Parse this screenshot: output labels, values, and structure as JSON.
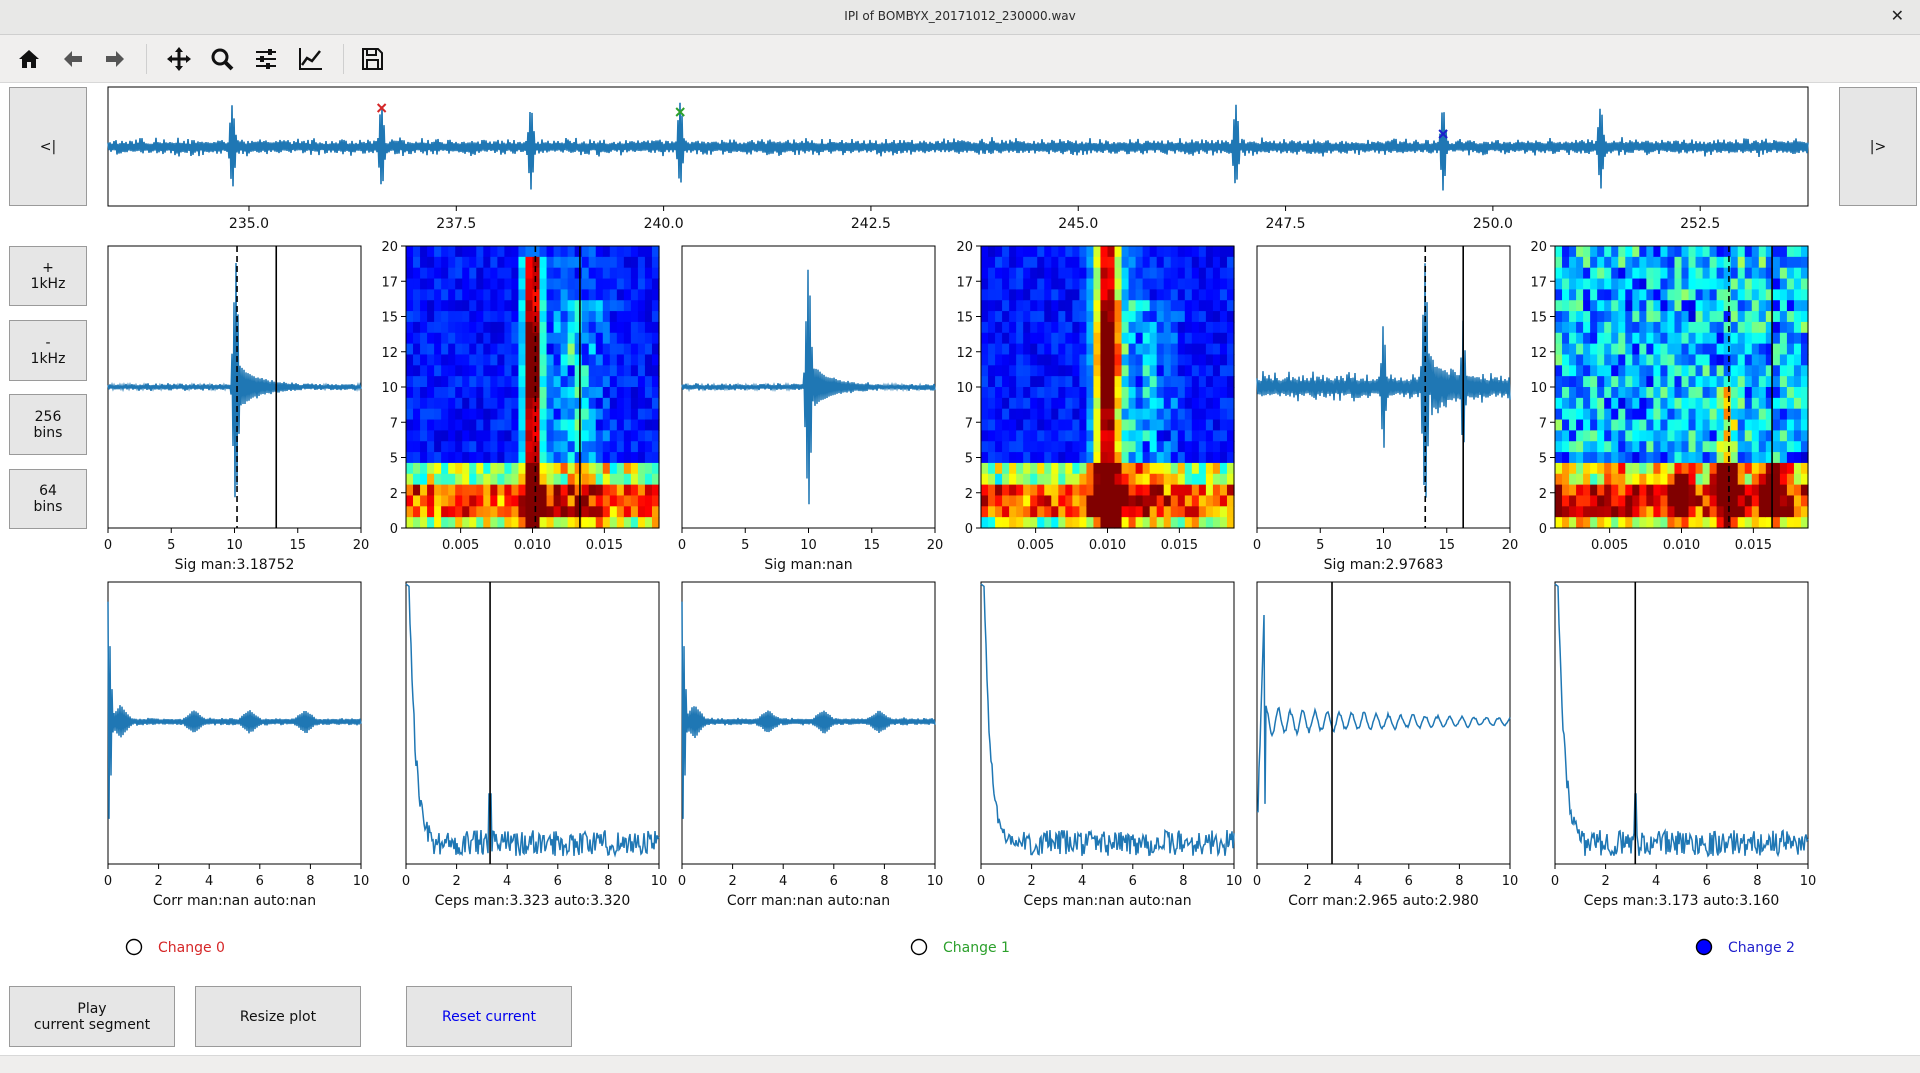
{
  "window": {
    "title": "IPI of BOMBYX_20171012_230000.wav"
  },
  "toolbar": {
    "icons": [
      "home-icon",
      "back-arrow-icon",
      "forward-arrow-icon",
      "pan-icon",
      "zoom-icon",
      "subplots-config-icon",
      "axes-edit-icon",
      "save-icon"
    ]
  },
  "nav": {
    "prev_label": "<|",
    "next_label": "|>"
  },
  "side_buttons": {
    "plus_khz": "+\n1kHz",
    "minus_khz": "-\n1kHz",
    "bins256": "256\nbins",
    "bins64": "64\nbins"
  },
  "bottom_buttons": {
    "play": "Play\ncurrent segment",
    "resize": "Resize plot",
    "reset": "Reset current"
  },
  "overview": {
    "ticks": [
      "235.0",
      "237.5",
      "240.0",
      "242.5",
      "245.0",
      "247.5",
      "250.0",
      "252.5"
    ],
    "tick_values": [
      235.0,
      237.5,
      240.0,
      242.5,
      245.0,
      247.5,
      250.0,
      252.5
    ],
    "xlim": [
      233.3,
      253.8
    ],
    "clicks": [
      236.6,
      240.2,
      246.9,
      249.4,
      251.3,
      238.4,
      234.8
    ],
    "markers": [
      {
        "x": 236.6,
        "color": "#d62728"
      },
      {
        "x": 240.2,
        "color": "#2ca02c"
      },
      {
        "x": 249.4,
        "color": "#1f1fcc"
      }
    ]
  },
  "plots": {
    "sig": [
      {
        "xlabel": "Sig man:3.18752",
        "ticks": [
          "0",
          "5",
          "10",
          "15",
          "20"
        ],
        "peak": 10.1,
        "dashed": 10.2,
        "solid": 13.3,
        "shape": "click"
      },
      {
        "xlabel": "Sig man:nan",
        "ticks": [
          "0",
          "5",
          "10",
          "15",
          "20"
        ],
        "peak": 10.0,
        "dashed": null,
        "solid": null,
        "shape": "click"
      },
      {
        "xlabel": "Sig man:2.97683",
        "ticks": [
          "0",
          "5",
          "10",
          "15",
          "20"
        ],
        "peak": 13.3,
        "dashed": 13.3,
        "solid": 16.3,
        "shape": "noisy"
      }
    ],
    "spec": [
      {
        "yticks": [
          "0",
          "2",
          "5",
          "7",
          "10",
          "12",
          "15",
          "17",
          "20"
        ],
        "xticks": [
          "0.005",
          "0.010",
          "0.015"
        ],
        "dashed": 0.0102,
        "solid": 0.0133,
        "mode": "a"
      },
      {
        "yticks": [
          "0",
          "2",
          "5",
          "7",
          "10",
          "12",
          "15",
          "17",
          "20"
        ],
        "xticks": [
          "0.005",
          "0.010",
          "0.015"
        ],
        "dashed": null,
        "solid": null,
        "mode": "b"
      },
      {
        "yticks": [
          "0",
          "2",
          "5",
          "7",
          "10",
          "12",
          "15",
          "17",
          "20"
        ],
        "xticks": [
          "0.005",
          "0.010",
          "0.015"
        ],
        "dashed": 0.0133,
        "solid": 0.0163,
        "mode": "c"
      }
    ],
    "corr": [
      {
        "xlabel": "Corr man:nan auto:nan",
        "ticks": [
          "0",
          "2",
          "4",
          "6",
          "8",
          "10"
        ],
        "solid": null,
        "shape": "decay"
      },
      {
        "xlabel": "Corr man:nan auto:nan",
        "ticks": [
          "0",
          "2",
          "4",
          "6",
          "8",
          "10"
        ],
        "solid": null,
        "shape": "decay"
      },
      {
        "xlabel": "Corr man:2.965 auto:2.980",
        "ticks": [
          "0",
          "2",
          "4",
          "6",
          "8",
          "10"
        ],
        "solid": 2.965,
        "shape": "osc"
      }
    ],
    "ceps": [
      {
        "xlabel": "Ceps man:3.323 auto:3.320",
        "ticks": [
          "0",
          "2",
          "4",
          "6",
          "8",
          "10"
        ],
        "solid": 3.323
      },
      {
        "xlabel": "Ceps man:nan auto:nan",
        "ticks": [
          "0",
          "2",
          "4",
          "6",
          "8",
          "10"
        ],
        "solid": null
      },
      {
        "xlabel": "Ceps man:3.173 auto:3.160",
        "ticks": [
          "0",
          "2",
          "4",
          "6",
          "8",
          "10"
        ],
        "solid": 3.173
      }
    ]
  },
  "radios": [
    {
      "label": "Change 0",
      "color": "#d62728",
      "checked": false
    },
    {
      "label": "Change 1",
      "color": "#2ca02c",
      "checked": false
    },
    {
      "label": "Change 2",
      "color": "#1f1fcc",
      "checked": true
    }
  ],
  "colors": {
    "line": "#1f77b4"
  }
}
